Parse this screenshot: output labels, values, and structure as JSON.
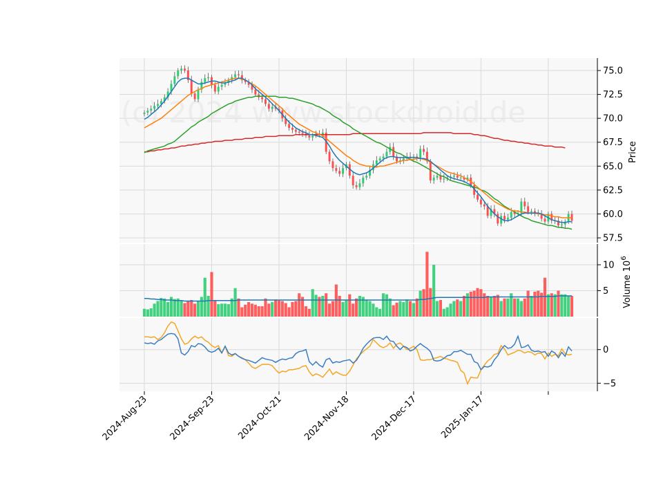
{
  "chart_data": {
    "type": "candlestick",
    "watermark": "(c) 2024 www.stockdroid.de",
    "colors": {
      "up": "#2ecc71",
      "down": "#ff4d4d",
      "ma_short": "#1f77b4",
      "ma_mid": "#ff7f0e",
      "ma_long": "#2ca02c",
      "ma_longest": "#d62728",
      "macd": "#3a7dbf",
      "signal": "#f5a623",
      "panel_bg": "#f8f8f8",
      "grid": "#d9d9d9"
    },
    "price_panel": {
      "ylabel": "Price",
      "ylim": [
        57.0,
        76.3
      ],
      "yticks": [
        "57.5",
        "60.0",
        "62.5",
        "65.0",
        "67.5",
        "70.0",
        "72.5",
        "75.0"
      ],
      "closes": [
        70.6,
        70.8,
        71.0,
        71.3,
        71.5,
        71.8,
        72.2,
        72.8,
        73.6,
        74.4,
        75.0,
        75.2,
        75.0,
        74.0,
        72.6,
        72.0,
        73.0,
        73.8,
        74.2,
        74.3,
        73.5,
        72.8,
        73.3,
        73.5,
        73.7,
        74.0,
        74.3,
        74.6,
        74.5,
        74.0,
        73.8,
        73.5,
        73.0,
        72.5,
        72.2,
        72.0,
        71.5,
        71.0,
        71.2,
        71.0,
        70.8,
        70.0,
        69.4,
        69.0,
        68.8,
        68.6,
        68.5,
        68.4,
        68.2,
        68.0,
        68.2,
        68.4,
        68.3,
        68.5,
        66.5,
        65.5,
        64.8,
        64.5,
        64.2,
        64.8,
        65.2,
        64.0,
        63.0,
        62.8,
        63.2,
        63.8,
        64.0,
        64.6,
        65.2,
        65.6,
        65.8,
        66.0,
        66.5,
        67.0,
        66.0,
        65.5,
        65.6,
        65.8,
        66.0,
        65.9,
        66.0,
        65.8,
        66.8,
        66.5,
        65.5,
        63.5,
        63.8,
        64.0,
        63.6,
        63.7,
        63.8,
        63.9,
        64.0,
        63.8,
        63.8,
        63.6,
        63.8,
        63.0,
        62.0,
        61.5,
        61.0,
        60.8,
        59.8,
        60.5,
        60.0,
        59.0,
        59.8,
        59.4,
        59.6,
        60.2,
        60.0,
        60.1,
        61.3,
        60.8,
        60.2,
        60.3,
        60.1,
        60.0,
        59.5,
        59.2,
        60.0,
        59.3,
        59.3,
        58.8,
        58.9,
        59.2,
        60.0,
        59.3
      ],
      "ma_short": [
        69.9,
        70.1,
        70.4,
        70.7,
        71.0,
        71.4,
        71.8,
        72.3,
        72.8,
        73.3,
        73.8,
        74.1,
        74.2,
        74.2,
        74.0,
        73.8,
        73.6,
        73.6,
        73.7,
        73.8,
        73.9,
        73.9,
        73.8,
        73.7,
        73.7,
        73.8,
        73.9,
        74.0,
        74.2,
        74.2,
        74.0,
        73.8,
        73.5,
        73.1,
        72.8,
        72.5,
        72.2,
        71.9,
        71.5,
        71.2,
        70.8,
        70.4,
        70.0,
        69.6,
        69.3,
        69.0,
        68.8,
        68.6,
        68.5,
        68.3,
        68.3,
        68.2,
        68.1,
        68.0,
        67.6,
        67.1,
        66.5,
        66.0,
        65.6,
        65.3,
        65.0,
        64.7,
        64.4,
        64.2,
        64.1,
        64.2,
        64.3,
        64.5,
        64.8,
        65.1,
        65.4,
        65.7,
        65.9,
        66.0,
        66.0,
        65.9,
        65.9,
        65.9,
        65.9,
        65.9,
        65.9,
        65.9,
        65.8,
        65.8,
        65.7,
        65.5,
        65.2,
        64.9,
        64.6,
        64.3,
        64.0,
        63.8,
        63.7,
        63.6,
        63.5,
        63.4,
        63.2,
        63.0,
        62.6,
        62.2,
        61.8,
        61.3,
        60.8,
        60.4,
        60.0,
        59.7,
        59.5,
        59.3,
        59.3,
        59.4,
        59.6,
        59.8,
        60.0,
        60.1,
        60.1,
        60.1,
        60.1,
        60.1,
        60.0,
        59.8,
        59.6,
        59.4,
        59.3,
        59.2,
        59.1,
        59.1,
        59.2,
        59.2
      ],
      "ma_mid": [
        69.0,
        69.2,
        69.4,
        69.6,
        69.8,
        70.0,
        70.3,
        70.6,
        70.9,
        71.2,
        71.5,
        71.8,
        72.1,
        72.4,
        72.6,
        72.8,
        73.0,
        73.1,
        73.3,
        73.4,
        73.5,
        73.6,
        73.7,
        73.8,
        73.9,
        74.0,
        74.1,
        74.2,
        74.2,
        74.1,
        74.0,
        73.8,
        73.6,
        73.4,
        73.1,
        72.8,
        72.5,
        72.2,
        71.9,
        71.6,
        71.3,
        71.0,
        70.6,
        70.3,
        70.0,
        69.7,
        69.4,
        69.2,
        69.0,
        68.8,
        68.6,
        68.5,
        68.3,
        68.2,
        67.9,
        67.6,
        67.3,
        67.0,
        66.7,
        66.4,
        66.1,
        65.9,
        65.6,
        65.4,
        65.2,
        65.1,
        65.0,
        65.0,
        64.9,
        64.9,
        65.0,
        65.0,
        65.1,
        65.2,
        65.3,
        65.4,
        65.5,
        65.6,
        65.6,
        65.7,
        65.7,
        65.8,
        65.8,
        65.7,
        65.6,
        65.4,
        65.2,
        65.0,
        64.8,
        64.6,
        64.4,
        64.3,
        64.2,
        64.1,
        64.0,
        63.8,
        63.6,
        63.4,
        63.1,
        62.8,
        62.5,
        62.2,
        61.9,
        61.6,
        61.3,
        61.1,
        60.9,
        60.7,
        60.5,
        60.4,
        60.3,
        60.3,
        60.2,
        60.2,
        60.1,
        60.1,
        60.1,
        60.0,
        60.0,
        59.9,
        59.9,
        59.8,
        59.7,
        59.7,
        59.6,
        59.6,
        59.6,
        59.6
      ],
      "ma_long": [
        66.4,
        66.6,
        66.7,
        66.8,
        66.9,
        67.0,
        67.1,
        67.3,
        67.4,
        67.6,
        67.9,
        68.2,
        68.5,
        68.8,
        69.1,
        69.3,
        69.6,
        69.8,
        70.0,
        70.2,
        70.5,
        70.7,
        70.9,
        71.1,
        71.3,
        71.5,
        71.6,
        71.8,
        71.9,
        72.0,
        72.1,
        72.2,
        72.2,
        72.3,
        72.3,
        72.3,
        72.3,
        72.3,
        72.3,
        72.3,
        72.2,
        72.2,
        72.2,
        72.1,
        72.1,
        72.0,
        71.9,
        71.8,
        71.7,
        71.6,
        71.5,
        71.3,
        71.2,
        71.0,
        70.8,
        70.6,
        70.3,
        70.1,
        69.9,
        69.6,
        69.4,
        69.2,
        68.9,
        68.7,
        68.5,
        68.3,
        68.1,
        67.9,
        67.7,
        67.5,
        67.4,
        67.2,
        67.0,
        66.8,
        66.6,
        66.4,
        66.3,
        66.1,
        65.9,
        65.7,
        65.5,
        65.4,
        65.2,
        65.0,
        64.8,
        64.6,
        64.4,
        64.2,
        64.0,
        63.9,
        63.7,
        63.5,
        63.4,
        63.3,
        63.2,
        63.1,
        63.0,
        62.9,
        62.8,
        62.7,
        62.5,
        62.4,
        62.2,
        61.9,
        61.6,
        61.4,
        61.1,
        60.8,
        60.6,
        60.4,
        60.2,
        60.0,
        59.8,
        59.6,
        59.5,
        59.3,
        59.2,
        59.1,
        59.0,
        58.9,
        58.8,
        58.8,
        58.7,
        58.6,
        58.6,
        58.5,
        58.5,
        58.4
      ],
      "ma_longest": [
        66.5,
        66.5,
        66.6,
        66.6,
        66.7,
        66.7,
        66.8,
        66.8,
        66.9,
        66.9,
        67.0,
        67.1,
        67.1,
        67.2,
        67.2,
        67.3,
        67.3,
        67.4,
        67.4,
        67.5,
        67.5,
        67.6,
        67.6,
        67.6,
        67.7,
        67.7,
        67.7,
        67.8,
        67.8,
        67.8,
        67.9,
        67.9,
        67.9,
        68.0,
        68.0,
        68.0,
        68.1,
        68.1,
        68.1,
        68.1,
        68.2,
        68.2,
        68.2,
        68.2,
        68.2,
        68.3,
        68.3,
        68.3,
        68.3,
        68.3,
        68.3,
        68.3,
        68.3,
        68.3,
        68.3,
        68.3,
        68.3,
        68.3,
        68.3,
        68.3,
        68.3,
        68.3,
        68.4,
        68.4,
        68.4,
        68.4,
        68.4,
        68.4,
        68.4,
        68.4,
        68.4,
        68.4,
        68.4,
        68.4,
        68.4,
        68.4,
        68.4,
        68.4,
        68.4,
        68.4,
        68.4,
        68.4,
        68.4,
        68.5,
        68.5,
        68.5,
        68.5,
        68.5,
        68.5,
        68.5,
        68.5,
        68.5,
        68.4,
        68.4,
        68.4,
        68.4,
        68.4,
        68.4,
        68.3,
        68.3,
        68.2,
        68.2,
        68.1,
        68.0,
        67.9,
        67.9,
        67.8,
        67.7,
        67.7,
        67.6,
        67.6,
        67.5,
        67.5,
        67.4,
        67.4,
        67.3,
        67.3,
        67.2,
        67.2,
        67.1,
        67.1,
        67.1,
        67.0,
        67.0,
        67.0,
        66.9
      ]
    },
    "volume_panel": {
      "ylabel": "Volume  10^6",
      "ylim": [
        0,
        14
      ],
      "yticks": [
        "5",
        "10"
      ],
      "volumes": [
        1.5,
        1.4,
        1.6,
        2.5,
        3.0,
        3.6,
        3.5,
        2.8,
        3.8,
        3.4,
        3.5,
        3.0,
        2.6,
        3.0,
        3.2,
        2.5,
        3.0,
        3.8,
        7.5,
        4.0,
        8.6,
        3.0,
        2.4,
        2.5,
        2.5,
        2.4,
        3.5,
        5.5,
        3.5,
        1.8,
        2.3,
        2.8,
        2.5,
        2.3,
        2.0,
        2.0,
        3.5,
        2.5,
        2.8,
        3.3,
        3.1,
        3.0,
        2.6,
        1.8,
        2.8,
        3.0,
        4.5,
        3.8,
        2.0,
        1.5,
        5.3,
        4.2,
        3.8,
        4.0,
        4.5,
        2.5,
        3.0,
        6.2,
        4.0,
        2.8,
        3.2,
        4.3,
        2.5,
        3.5,
        4.0,
        3.8,
        3.2,
        3.0,
        2.5,
        1.8,
        1.5,
        4.5,
        4.3,
        3.5,
        2.2,
        2.7,
        3.0,
        2.8,
        3.3,
        3.0,
        2.6,
        3.5,
        5.0,
        5.3,
        12.5,
        5.5,
        10.0,
        3.0,
        3.2,
        1.5,
        1.8,
        2.5,
        3.0,
        3.3,
        3.0,
        4.0,
        4.5,
        4.8,
        5.0,
        5.5,
        5.3,
        4.5,
        4.0,
        3.8,
        4.0,
        4.2,
        3.0,
        3.5,
        3.5,
        4.5,
        3.5,
        3.5,
        3.0,
        3.5,
        5.0,
        4.0,
        4.8,
        5.0,
        4.6,
        7.5,
        4.3,
        4.5,
        4.3,
        5.0,
        4.3,
        4.3,
        4.0,
        4.0
      ],
      "volume_ma": [
        3.5,
        3.5,
        3.4,
        3.4,
        3.3,
        3.3,
        3.2,
        3.2,
        3.2,
        3.1,
        3.1,
        3.1,
        3.0,
        3.0,
        3.0,
        3.0,
        3.0,
        3.0,
        3.0,
        3.1,
        3.1,
        3.1,
        3.1,
        3.1,
        3.1,
        3.1,
        3.1,
        3.1,
        3.2,
        3.2,
        3.2,
        3.2,
        3.2,
        3.2,
        3.2,
        3.2,
        3.2,
        3.2,
        3.2,
        3.2,
        3.2,
        3.2,
        3.2,
        3.2,
        3.2,
        3.2,
        3.2,
        3.2,
        3.2,
        3.2,
        3.2,
        3.2,
        3.2,
        3.2,
        3.2,
        3.2,
        3.2,
        3.2,
        3.2,
        3.2,
        3.2,
        3.2,
        3.2,
        3.2,
        3.2,
        3.2,
        3.2,
        3.2,
        3.2,
        3.2,
        3.2,
        3.2,
        3.2,
        3.2,
        3.2,
        3.2,
        3.2,
        3.2,
        3.2,
        3.2,
        3.2,
        3.2,
        3.3,
        3.3,
        3.4,
        3.5,
        3.6,
        3.7,
        3.7,
        3.7,
        3.7,
        3.7,
        3.7,
        3.7,
        3.7,
        3.7,
        3.7,
        3.7,
        3.7,
        3.7,
        3.7,
        3.7,
        3.8,
        3.8,
        3.8,
        3.8,
        3.8,
        3.8,
        3.8,
        3.8,
        3.8,
        3.8,
        3.8,
        3.8,
        3.8,
        3.8,
        3.8,
        3.8,
        3.9,
        3.9,
        3.9,
        3.9,
        3.9,
        4.0,
        4.0,
        4.0,
        4.0,
        4.0
      ]
    },
    "macd_panel": {
      "ylim": [
        -6.2,
        4.7
      ],
      "yticks": [
        "-5",
        "0"
      ],
      "macd": [
        1.0,
        0.9,
        1.0,
        0.8,
        1.3,
        1.5,
        1.9,
        2.3,
        2.4,
        2.3,
        1.6,
        -0.5,
        -0.8,
        -0.3,
        0.6,
        0.4,
        0.9,
        0.8,
        0.4,
        -0.2,
        -0.4,
        -0.2,
        0.2,
        -0.5,
        0.5,
        -0.5,
        -0.8,
        -0.6,
        -1.0,
        -1.3,
        -1.5,
        -1.6,
        -1.8,
        -2.0,
        -1.6,
        -1.2,
        -1.4,
        -1.5,
        -1.6,
        -1.9,
        -1.6,
        -1.4,
        -1.5,
        -1.3,
        -1.2,
        -0.6,
        -0.3,
        -0.2,
        0.0,
        -1.8,
        -2.3,
        -1.8,
        -2.3,
        -2.6,
        -1.5,
        -1.3,
        -2.0,
        -1.8,
        -1.9,
        -1.7,
        -1.6,
        -1.5,
        -2.0,
        -1.6,
        -0.8,
        0.2,
        0.8,
        1.3,
        1.7,
        1.8,
        1.8,
        1.5,
        2.0,
        1.3,
        1.2,
        0.5,
        0.0,
        0.5,
        0.3,
        -0.2,
        0.0,
        0.5,
        0.9,
        0.5,
        0.2,
        -0.3,
        -1.6,
        -1.7,
        -1.6,
        -1.3,
        -0.9,
        -0.8,
        -0.3,
        -0.3,
        -0.1,
        -0.4,
        -0.7,
        -0.7,
        -1.8,
        -2.0,
        -3.0,
        -2.5,
        -2.6,
        -2.4,
        -1.5,
        -0.9,
        0.0,
        0.6,
        0.2,
        0.3,
        0.8,
        2.0,
        0.3,
        0.4,
        0.7,
        -0.1,
        -0.3,
        -0.2,
        -0.4,
        -0.3,
        -1.0,
        -0.2,
        -0.5,
        -1.2,
        -0.4,
        -1.0,
        0.4,
        -0.2
      ],
      "signal": [
        1.9,
        1.9,
        1.8,
        1.9,
        1.5,
        1.8,
        2.5,
        3.5,
        4.1,
        3.9,
        2.8,
        1.6,
        0.8,
        1.0,
        1.6,
        2.0,
        1.7,
        1.9,
        1.4,
        1.1,
        0.6,
        0.3,
        0.6,
        -0.5,
        0.5,
        -0.9,
        -1.0,
        -0.6,
        -1.0,
        -1.2,
        -1.5,
        -2.0,
        -2.6,
        -2.8,
        -2.5,
        -2.2,
        -2.2,
        -2.2,
        -2.4,
        -3.0,
        -3.5,
        -3.2,
        -3.3,
        -3.0,
        -3.0,
        -2.9,
        -2.8,
        -2.5,
        -2.4,
        -3.3,
        -3.9,
        -3.6,
        -3.8,
        -4.1,
        -3.5,
        -2.9,
        -3.7,
        -3.3,
        -3.6,
        -3.8,
        -3.8,
        -3.2,
        -2.3,
        -1.4,
        -0.8,
        -0.3,
        0.1,
        0.5,
        1.5,
        1.0,
        0.5,
        0.3,
        0.5,
        1.0,
        0.2,
        0.8,
        1.0,
        0.5,
        0.0,
        0.2,
        0.5,
        0.0,
        -1.5,
        -1.6,
        -1.5,
        -1.5,
        -1.3,
        -1.2,
        -1.0,
        -1.3,
        -1.4,
        -1.6,
        -1.7,
        -1.9,
        -3.1,
        -3.5,
        -5.1,
        -4.1,
        -4.2,
        -4.2,
        -3.0,
        -2.3,
        -1.7,
        -1.3,
        -0.7,
        -0.6,
        0.6,
        0.1,
        -0.8,
        -0.6,
        -0.4,
        -0.1,
        -0.2,
        -0.5,
        -0.3,
        -0.4,
        -0.8,
        -0.5,
        -0.6,
        -1.4,
        -0.5,
        -1.0,
        -0.7,
        -0.9,
        0.1,
        -0.6,
        -0.8,
        -0.7
      ]
    },
    "x_tick_labels": [
      "2024-Aug-23",
      "2024-Sep-23",
      "2024-Oct-21",
      "2024-Nov-18",
      "2024-Dec-17",
      "2025-Jan-17"
    ],
    "x_tick_indices": [
      0,
      20,
      40,
      60,
      80,
      100
    ]
  }
}
